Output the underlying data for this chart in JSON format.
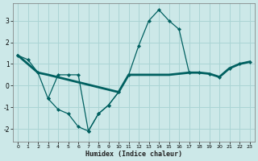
{
  "xlabel": "Humidex (Indice chaleur)",
  "background_color": "#cce8e8",
  "grid_color": "#aad4d4",
  "line_color": "#006060",
  "xlim": [
    -0.5,
    23.5
  ],
  "ylim": [
    -2.6,
    3.8
  ],
  "yticks": [
    -2,
    -1,
    0,
    1,
    2,
    3
  ],
  "xticks": [
    0,
    1,
    2,
    3,
    4,
    5,
    6,
    7,
    8,
    9,
    10,
    11,
    12,
    13,
    14,
    15,
    16,
    17,
    18,
    19,
    20,
    21,
    22,
    23
  ],
  "series_main_x": [
    0,
    1,
    2,
    3,
    4,
    5,
    6,
    7,
    8,
    9,
    10,
    11,
    12,
    13,
    14,
    15,
    16,
    17,
    18,
    19,
    20,
    21,
    22,
    23
  ],
  "series_main_y": [
    1.4,
    1.2,
    0.6,
    -0.6,
    -1.1,
    -1.3,
    -1.9,
    -2.1,
    -1.3,
    -0.9,
    -0.3,
    0.5,
    1.85,
    3.0,
    3.5,
    3.0,
    2.6,
    0.6,
    0.6,
    0.55,
    0.4,
    0.8,
    1.0,
    1.1
  ],
  "series_lower_x": [
    3,
    4,
    5,
    6,
    7,
    8,
    9,
    10
  ],
  "series_lower_y": [
    -0.6,
    0.5,
    0.5,
    0.5,
    -2.1,
    -1.3,
    -0.9,
    -0.3
  ],
  "refline_x": [
    0,
    2,
    3,
    10,
    11,
    12,
    13,
    14,
    15,
    16,
    17,
    18,
    19,
    20,
    21,
    22,
    23
  ],
  "refline_y": [
    1.4,
    0.6,
    0.5,
    -0.3,
    0.5,
    0.5,
    0.5,
    0.5,
    0.5,
    0.55,
    0.6,
    0.6,
    0.55,
    0.4,
    0.8,
    1.0,
    1.1
  ]
}
